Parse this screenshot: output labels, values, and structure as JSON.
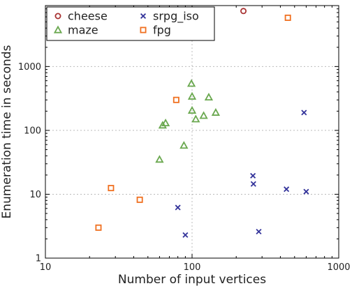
{
  "chart_data": {
    "type": "scatter",
    "xlabel": "Number of input vertices",
    "ylabel": "Enumeration time in seconds",
    "xscale": "log",
    "yscale": "log",
    "xlim": [
      10,
      1000
    ],
    "ylim": [
      1,
      9000
    ],
    "x_ticks": [
      {
        "value": 10,
        "label": "10"
      },
      {
        "value": 100,
        "label": "100"
      },
      {
        "value": 1000,
        "label": "1000"
      }
    ],
    "y_ticks": [
      {
        "value": 1,
        "label": "1"
      },
      {
        "value": 10,
        "label": "10"
      },
      {
        "value": 100,
        "label": "100"
      },
      {
        "value": 1000,
        "label": "1000"
      }
    ],
    "grid": true,
    "legend": {
      "position": "top-left",
      "columns": 2
    },
    "series": [
      {
        "name": "cheese",
        "marker": "circle",
        "color": "#a83232",
        "points": [
          [
            224,
            7400
          ]
        ]
      },
      {
        "name": "maze",
        "marker": "triangle",
        "color": "#6aa84f",
        "points": [
          [
            60,
            35
          ],
          [
            63,
            120
          ],
          [
            66,
            130
          ],
          [
            88,
            58
          ],
          [
            99,
            540
          ],
          [
            100,
            340
          ],
          [
            100,
            205
          ],
          [
            106,
            150
          ],
          [
            120,
            170
          ],
          [
            130,
            330
          ],
          [
            145,
            190
          ]
        ]
      },
      {
        "name": "srpg_iso",
        "marker": "x",
        "color": "#33339a",
        "points": [
          [
            80,
            6.2
          ],
          [
            90,
            2.3
          ],
          [
            260,
            19.5
          ],
          [
            262,
            14.5
          ],
          [
            285,
            2.6
          ],
          [
            440,
            12
          ],
          [
            580,
            190
          ],
          [
            600,
            11
          ]
        ]
      },
      {
        "name": "fpg",
        "marker": "square",
        "color": "#f07020",
        "points": [
          [
            23,
            3
          ],
          [
            28,
            12.5
          ],
          [
            44,
            8.2
          ],
          [
            78,
            300
          ],
          [
            450,
            5800
          ]
        ]
      }
    ]
  }
}
